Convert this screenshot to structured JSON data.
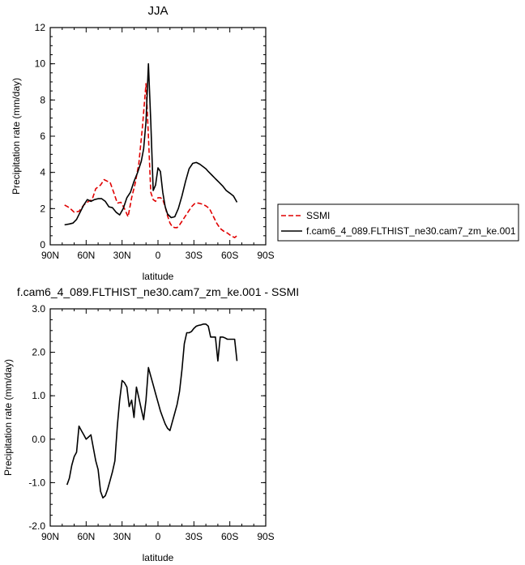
{
  "chart_data": [
    {
      "type": "line",
      "title": "JJA",
      "xlabel": "latitude",
      "ylabel": "Precipitation rate (mm/day)",
      "xlim": [
        90,
        -90
      ],
      "ylim": [
        0,
        12
      ],
      "x_ticks": [
        90,
        60,
        30,
        0,
        -30,
        -60,
        -90
      ],
      "x_tick_labels": [
        "90N",
        "60N",
        "30N",
        "0",
        "30S",
        "60S",
        "90S"
      ],
      "y_ticks": [
        0,
        2,
        4,
        6,
        8,
        10,
        12
      ],
      "y_tick_labels": [
        "0",
        "2",
        "4",
        "6",
        "8",
        "10",
        "12"
      ],
      "legend_position": "right",
      "series": [
        {
          "name": "SSMI",
          "color": "#e00000",
          "dash": "dashed",
          "x": [
            78,
            74,
            70,
            66,
            62,
            58,
            55,
            52,
            48,
            45,
            42,
            40,
            37,
            34,
            31,
            28,
            25,
            22,
            19,
            16,
            13,
            10,
            8,
            6,
            4,
            2,
            0,
            -2,
            -4,
            -6,
            -8,
            -10,
            -12,
            -14,
            -16,
            -18,
            -20,
            -22,
            -25,
            -28,
            -31,
            -34,
            -37,
            -40,
            -43,
            -46,
            -49,
            -52,
            -55,
            -58,
            -61,
            -64,
            -66
          ],
          "y": [
            2.2,
            2.05,
            1.8,
            1.85,
            2.2,
            2.4,
            2.5,
            3.1,
            3.3,
            3.6,
            3.5,
            3.45,
            2.9,
            2.3,
            2.35,
            2.0,
            1.55,
            2.6,
            3.4,
            4.5,
            6.5,
            8.9,
            6.0,
            2.9,
            2.5,
            2.4,
            2.6,
            2.6,
            2.5,
            2.1,
            1.6,
            1.2,
            1.0,
            0.95,
            0.95,
            1.1,
            1.3,
            1.5,
            1.8,
            2.1,
            2.3,
            2.3,
            2.25,
            2.15,
            2.0,
            1.6,
            1.2,
            0.9,
            0.75,
            0.65,
            0.5,
            0.4,
            0.5
          ]
        },
        {
          "name": "f.cam6_4_089.FLTHIST_ne30.cam7_zm_ke.001",
          "color": "#000000",
          "dash": "solid",
          "x": [
            78,
            74,
            71,
            68,
            65,
            62,
            59,
            56,
            53,
            50,
            47,
            44,
            41,
            38,
            35,
            32,
            29,
            26,
            23,
            20,
            17,
            14,
            12,
            10,
            8,
            6,
            4,
            2,
            0,
            -2,
            -4,
            -6,
            -8,
            -11,
            -14,
            -17,
            -20,
            -23,
            -26,
            -29,
            -32,
            -35,
            -38,
            -40,
            -42,
            -45,
            -48,
            -51,
            -54,
            -57,
            -60,
            -63,
            -66
          ],
          "y": [
            1.1,
            1.15,
            1.2,
            1.4,
            1.8,
            2.2,
            2.5,
            2.4,
            2.5,
            2.55,
            2.55,
            2.4,
            2.1,
            2.05,
            1.8,
            1.65,
            2.0,
            2.6,
            2.9,
            3.5,
            4.0,
            4.6,
            5.3,
            6.8,
            10.0,
            6.8,
            3.0,
            3.3,
            4.25,
            4.05,
            2.9,
            2.1,
            1.7,
            1.5,
            1.55,
            2.0,
            2.7,
            3.5,
            4.2,
            4.5,
            4.55,
            4.45,
            4.3,
            4.2,
            4.05,
            3.85,
            3.65,
            3.45,
            3.25,
            3.0,
            2.85,
            2.7,
            2.35
          ]
        }
      ]
    },
    {
      "type": "line",
      "title": "f.cam6_4_089.FLTHIST_ne30.cam7_zm_ke.001 - SSMI",
      "xlabel": "latitude",
      "ylabel": "Precipitation rate (mm/day)",
      "xlim": [
        90,
        -90
      ],
      "ylim": [
        -2.0,
        3.0
      ],
      "x_ticks": [
        90,
        60,
        30,
        0,
        -30,
        -60,
        -90
      ],
      "x_tick_labels": [
        "90N",
        "60N",
        "30N",
        "0",
        "30S",
        "60S",
        "90S"
      ],
      "y_ticks": [
        -2.0,
        -1.0,
        0.0,
        1.0,
        2.0,
        3.0
      ],
      "y_tick_labels": [
        "-2.0",
        "-1.0",
        "0.0",
        "1.0",
        "2.0",
        "3.0"
      ],
      "series": [
        {
          "color": "#000000",
          "dash": "solid",
          "x": [
            76,
            74,
            72,
            70,
            68,
            66,
            64,
            62,
            60,
            58,
            56,
            54,
            52,
            50,
            48,
            46,
            44,
            42,
            40,
            38,
            36,
            34,
            32,
            30,
            28,
            26,
            24,
            22,
            20,
            18,
            16,
            14,
            12,
            10,
            8,
            6,
            4,
            2,
            0,
            -2,
            -4,
            -6,
            -8,
            -10,
            -12,
            -14,
            -16,
            -18,
            -20,
            -22,
            -24,
            -26,
            -28,
            -30,
            -32,
            -34,
            -36,
            -38,
            -40,
            -42,
            -44,
            -46,
            -48,
            -50,
            -52,
            -54,
            -56,
            -58,
            -60,
            -62,
            -64,
            -66
          ],
          "y": [
            -1.05,
            -0.9,
            -0.6,
            -0.4,
            -0.3,
            0.3,
            0.2,
            0.1,
            0.0,
            0.05,
            0.1,
            -0.2,
            -0.5,
            -0.7,
            -1.2,
            -1.35,
            -1.3,
            -1.15,
            -0.95,
            -0.75,
            -0.5,
            0.3,
            0.9,
            1.35,
            1.3,
            1.2,
            0.75,
            0.9,
            0.5,
            1.2,
            0.95,
            0.7,
            0.45,
            0.9,
            1.65,
            1.45,
            1.25,
            1.05,
            0.85,
            0.65,
            0.5,
            0.35,
            0.25,
            0.2,
            0.4,
            0.6,
            0.8,
            1.1,
            1.6,
            2.2,
            2.45,
            2.45,
            2.48,
            2.55,
            2.6,
            2.62,
            2.63,
            2.65,
            2.65,
            2.6,
            2.35,
            2.35,
            2.35,
            1.8,
            2.35,
            2.35,
            2.33,
            2.3,
            2.3,
            2.3,
            2.3,
            1.8
          ]
        }
      ]
    }
  ]
}
